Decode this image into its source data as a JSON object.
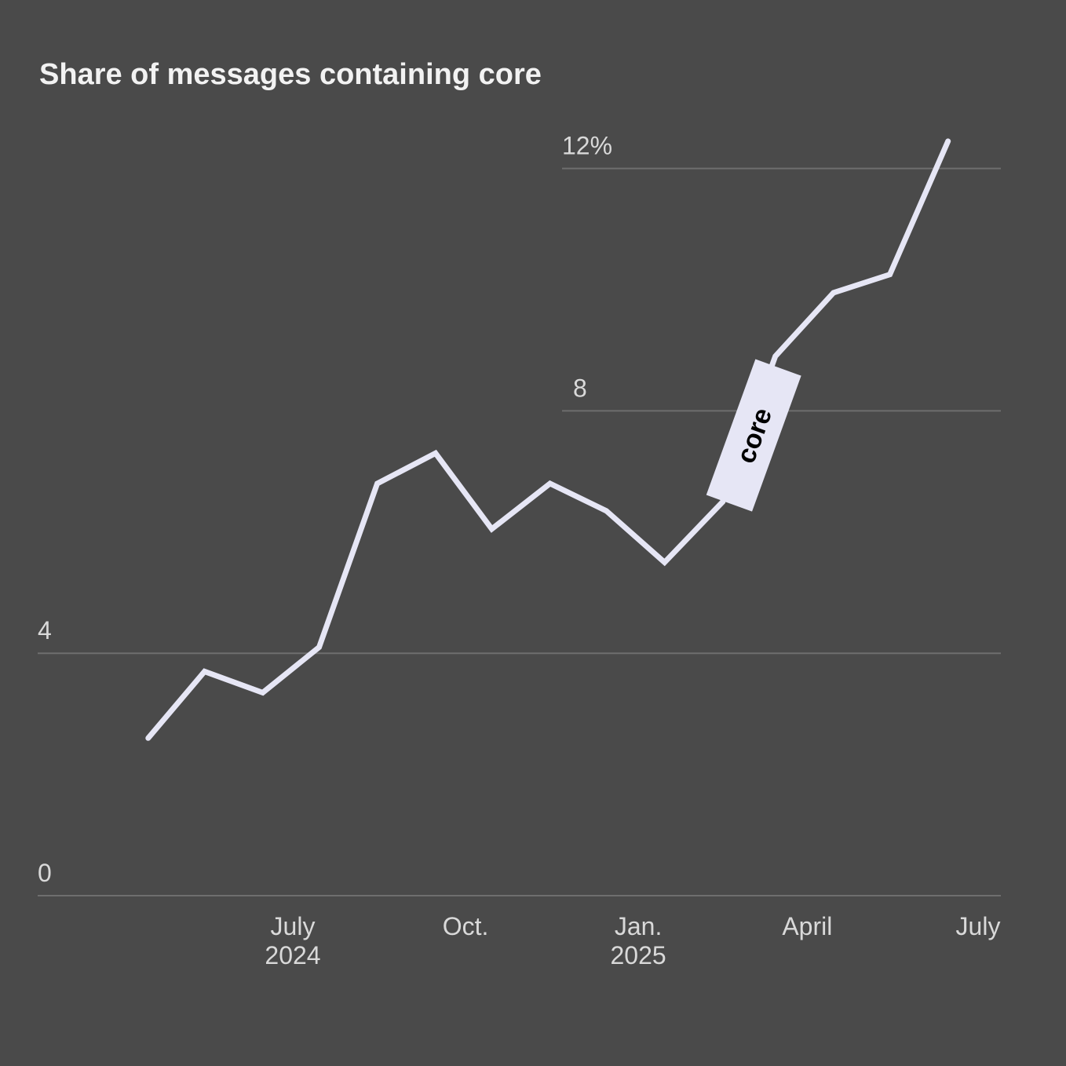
{
  "title": "Share of messages containing core",
  "colors": {
    "background": "#4a4a4a",
    "line": "#e6e6f5",
    "label_box": "#e6e6f5",
    "label_text": "#000000",
    "grid": "#6e6e6e",
    "tick_text": "#d9d9d9",
    "title_text": "#f2f2f2"
  },
  "chart_data": {
    "type": "line",
    "title": "Share of messages containing core",
    "xlabel": "",
    "ylabel": "",
    "ylim": [
      0,
      12.5
    ],
    "grid": true,
    "y_ticks": [
      {
        "value": 0,
        "label": "0"
      },
      {
        "value": 4,
        "label": "4"
      },
      {
        "value": 8,
        "label": "8"
      },
      {
        "value": 12,
        "label": "12%"
      }
    ],
    "x_ticks": [
      {
        "date": "2024-07-01",
        "label": "July",
        "sublabel": "2024"
      },
      {
        "date": "2024-10-01",
        "label": "Oct.",
        "sublabel": ""
      },
      {
        "date": "2025-01-01",
        "label": "Jan.",
        "sublabel": "2025"
      },
      {
        "date": "2025-04-01",
        "label": "April",
        "sublabel": ""
      },
      {
        "date": "2025-07-01",
        "label": "July",
        "sublabel": ""
      }
    ],
    "series": [
      {
        "name": "core",
        "points": [
          {
            "x": "2024-04-15",
            "y": 2.6
          },
          {
            "x": "2024-05-15",
            "y": 3.7
          },
          {
            "x": "2024-06-15",
            "y": 3.35
          },
          {
            "x": "2024-07-15",
            "y": 4.1
          },
          {
            "x": "2024-08-15",
            "y": 6.8
          },
          {
            "x": "2024-09-15",
            "y": 7.3
          },
          {
            "x": "2024-10-15",
            "y": 6.05
          },
          {
            "x": "2024-11-15",
            "y": 6.8
          },
          {
            "x": "2024-12-15",
            "y": 6.35
          },
          {
            "x": "2025-01-15",
            "y": 5.5
          },
          {
            "x": "2025-02-15",
            "y": 6.5
          },
          {
            "x": "2025-03-15",
            "y": 8.9
          },
          {
            "x": "2025-04-15",
            "y": 9.95
          },
          {
            "x": "2025-05-15",
            "y": 10.25
          },
          {
            "x": "2025-06-15",
            "y": 12.45
          }
        ]
      }
    ]
  }
}
